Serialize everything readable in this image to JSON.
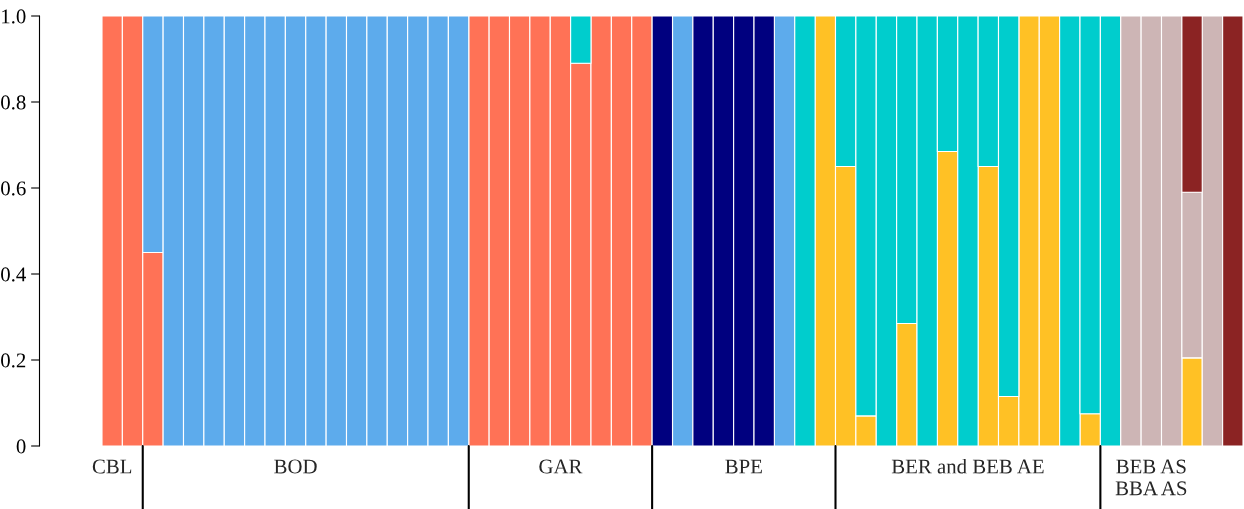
{
  "chart_data": {
    "type": "bar",
    "stacked": true,
    "categories": [
      "CBL",
      null,
      null,
      null,
      null,
      null,
      null,
      null,
      null,
      "BOD",
      null,
      null,
      null,
      null,
      null,
      null,
      null,
      null,
      null,
      null,
      null,
      null,
      "GAR",
      null,
      null,
      null,
      null,
      null,
      null,
      null,
      null,
      "BPE",
      null,
      null,
      null,
      null,
      null,
      null,
      null,
      null,
      null,
      null,
      "BER and BEB AE",
      null,
      null,
      null,
      null,
      null,
      null,
      null,
      null,
      "BEB AS\nBBA AS",
      null,
      null,
      null,
      null
    ],
    "series": [
      {
        "color": "#ff7256",
        "values": [
          1,
          1,
          0.45,
          null,
          null,
          null,
          null,
          null,
          null,
          null,
          null,
          null,
          null,
          null,
          null,
          null,
          null,
          null,
          1,
          1,
          1,
          1,
          1,
          0.89,
          1,
          1,
          1,
          null,
          null,
          null,
          null,
          null,
          null,
          null,
          null,
          null,
          null,
          null,
          null,
          null,
          null,
          null,
          null,
          null,
          null,
          null,
          null,
          null,
          null,
          null,
          null,
          null,
          null,
          null,
          null,
          null
        ]
      },
      {
        "color": "#ffc125",
        "values": [
          null,
          null,
          null,
          null,
          null,
          null,
          null,
          null,
          null,
          null,
          null,
          null,
          null,
          null,
          null,
          null,
          null,
          null,
          null,
          null,
          null,
          null,
          null,
          null,
          null,
          null,
          null,
          null,
          null,
          null,
          null,
          null,
          null,
          null,
          null,
          1,
          0.65,
          0.07,
          null,
          0.285,
          null,
          0.685,
          null,
          0.65,
          0.115,
          1,
          1,
          null,
          0.075,
          null,
          null,
          null,
          null,
          0.205,
          null,
          null
        ]
      },
      {
        "color": "#5dabec",
        "values": [
          null,
          null,
          0.55,
          1,
          1,
          1,
          1,
          1,
          1,
          1,
          1,
          1,
          1,
          1,
          1,
          1,
          1,
          1,
          null,
          null,
          null,
          null,
          null,
          null,
          null,
          null,
          null,
          null,
          1,
          null,
          null,
          null,
          null,
          1,
          null,
          null,
          null,
          null,
          null,
          null,
          null,
          null,
          null,
          null,
          null,
          null,
          null,
          null,
          null,
          null,
          null,
          null,
          null,
          null,
          null,
          null
        ]
      },
      {
        "color": "#00007f",
        "values": [
          null,
          null,
          null,
          null,
          null,
          null,
          null,
          null,
          null,
          null,
          null,
          null,
          null,
          null,
          null,
          null,
          null,
          null,
          null,
          null,
          null,
          null,
          null,
          null,
          null,
          null,
          null,
          1,
          null,
          1,
          1,
          1,
          1,
          null,
          null,
          null,
          null,
          null,
          null,
          null,
          null,
          null,
          null,
          null,
          null,
          null,
          null,
          null,
          null,
          null,
          null,
          null,
          null,
          null,
          null,
          null
        ]
      },
      {
        "color": "#00cdcd",
        "values": [
          null,
          null,
          null,
          null,
          null,
          null,
          null,
          null,
          null,
          null,
          null,
          null,
          null,
          null,
          null,
          null,
          null,
          null,
          null,
          null,
          null,
          null,
          null,
          0.11,
          null,
          null,
          null,
          null,
          null,
          null,
          null,
          null,
          null,
          null,
          1,
          null,
          0.35,
          0.93,
          1,
          0.715,
          1,
          0.315,
          1,
          0.35,
          0.885,
          null,
          null,
          1,
          0.925,
          1,
          null,
          null,
          null,
          null,
          null,
          null
        ]
      },
      {
        "color": "#cdb5b5",
        "values": [
          null,
          null,
          null,
          null,
          null,
          null,
          null,
          null,
          null,
          null,
          null,
          null,
          null,
          null,
          null,
          null,
          null,
          null,
          null,
          null,
          null,
          null,
          null,
          null,
          null,
          null,
          null,
          null,
          null,
          null,
          null,
          null,
          null,
          null,
          null,
          null,
          null,
          null,
          null,
          null,
          null,
          null,
          null,
          null,
          null,
          null,
          null,
          null,
          null,
          null,
          1,
          1,
          1,
          0.385,
          1,
          null
        ]
      },
      {
        "color": "#8b2323",
        "values": [
          null,
          null,
          null,
          null,
          null,
          null,
          null,
          null,
          null,
          null,
          null,
          null,
          null,
          null,
          null,
          null,
          null,
          null,
          null,
          null,
          null,
          null,
          null,
          null,
          null,
          null,
          null,
          null,
          null,
          null,
          null,
          null,
          null,
          null,
          null,
          null,
          null,
          null,
          null,
          null,
          null,
          null,
          null,
          null,
          null,
          null,
          null,
          null,
          null,
          null,
          null,
          null,
          null,
          0.41,
          null,
          1
        ]
      }
    ],
    "ylim": [
      0,
      1
    ],
    "yticks": [
      0,
      0.2,
      0.4,
      0.6,
      0.8,
      {
        "value": 1,
        "label": "1.0"
      }
    ]
  }
}
